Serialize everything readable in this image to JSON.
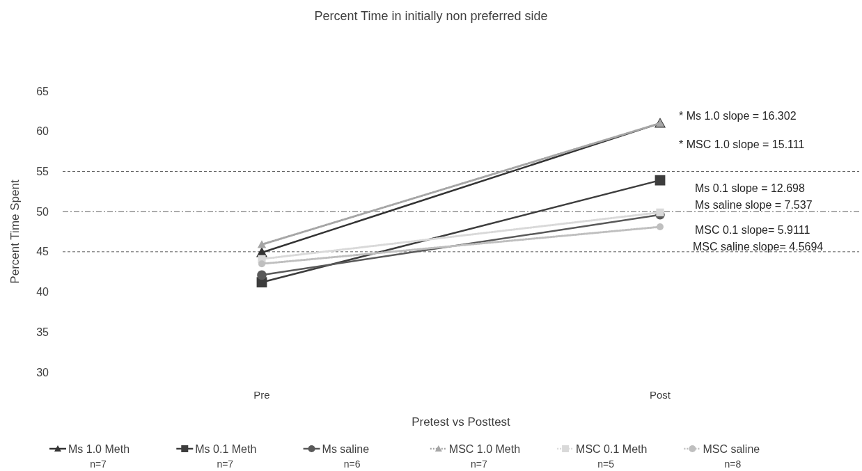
{
  "chart_data": {
    "type": "line",
    "title": "Percent Time in initially non preferred side",
    "xlabel": "Pretest vs Posttest",
    "ylabel": "Percent Time Spent",
    "categories": [
      "Pre",
      "Post"
    ],
    "series": [
      {
        "name": "Ms 1.0 Meth\nn=7",
        "color": "#333333",
        "marker": "triangle",
        "line_style": "solid",
        "values": [
          44.9,
          61.0
        ]
      },
      {
        "name": "Ms 0.1 Meth\nn=7",
        "color": "#3d3d3d",
        "marker": "square",
        "line_style": "solid",
        "values": [
          41.2,
          53.9
        ]
      },
      {
        "name": "Ms saline\nn=6",
        "color": "#595959",
        "marker": "circle",
        "line_style": "solid",
        "values": [
          42.1,
          49.6
        ]
      },
      {
        "name": "MSC 1.0 Meth\nn=7",
        "color": "#a6a6a6",
        "marker": "triangle",
        "line_style": "dotted",
        "values": [
          45.9,
          61.0
        ]
      },
      {
        "name": "MSC 0.1 Meth\nn=5",
        "color": "#d9d9d9",
        "marker": "square",
        "line_style": "dotted",
        "values": [
          44.1,
          49.9
        ]
      },
      {
        "name": "MSC saline\nn=8",
        "color": "#bfbfbf",
        "marker": "circle",
        "line_style": "dotted",
        "values": [
          43.5,
          48.1
        ]
      }
    ],
    "ylim": [
      30,
      65
    ],
    "yticks": [
      30,
      35,
      40,
      45,
      50,
      55,
      60,
      65
    ],
    "grid": false,
    "legend": "bottom",
    "ref_lines": [
      {
        "axis": "y",
        "value": 55,
        "color": "#595959",
        "line_style": "dashed"
      },
      {
        "axis": "y",
        "value": 50,
        "color": "#595959",
        "line_style": "dashdot"
      },
      {
        "axis": "y",
        "value": 45,
        "color": "#595959",
        "line_style": "dashed"
      }
    ],
    "annotations": [
      "*  Ms 1.0 slope = 16.302",
      "*  MSC 1.0 slope = 15.111",
      "Ms 0.1 slope = 12.698",
      "Ms saline slope = 7.537",
      "MSC 0.1 slope= 5.9111",
      "MSC saline slope= 4.5694"
    ]
  }
}
